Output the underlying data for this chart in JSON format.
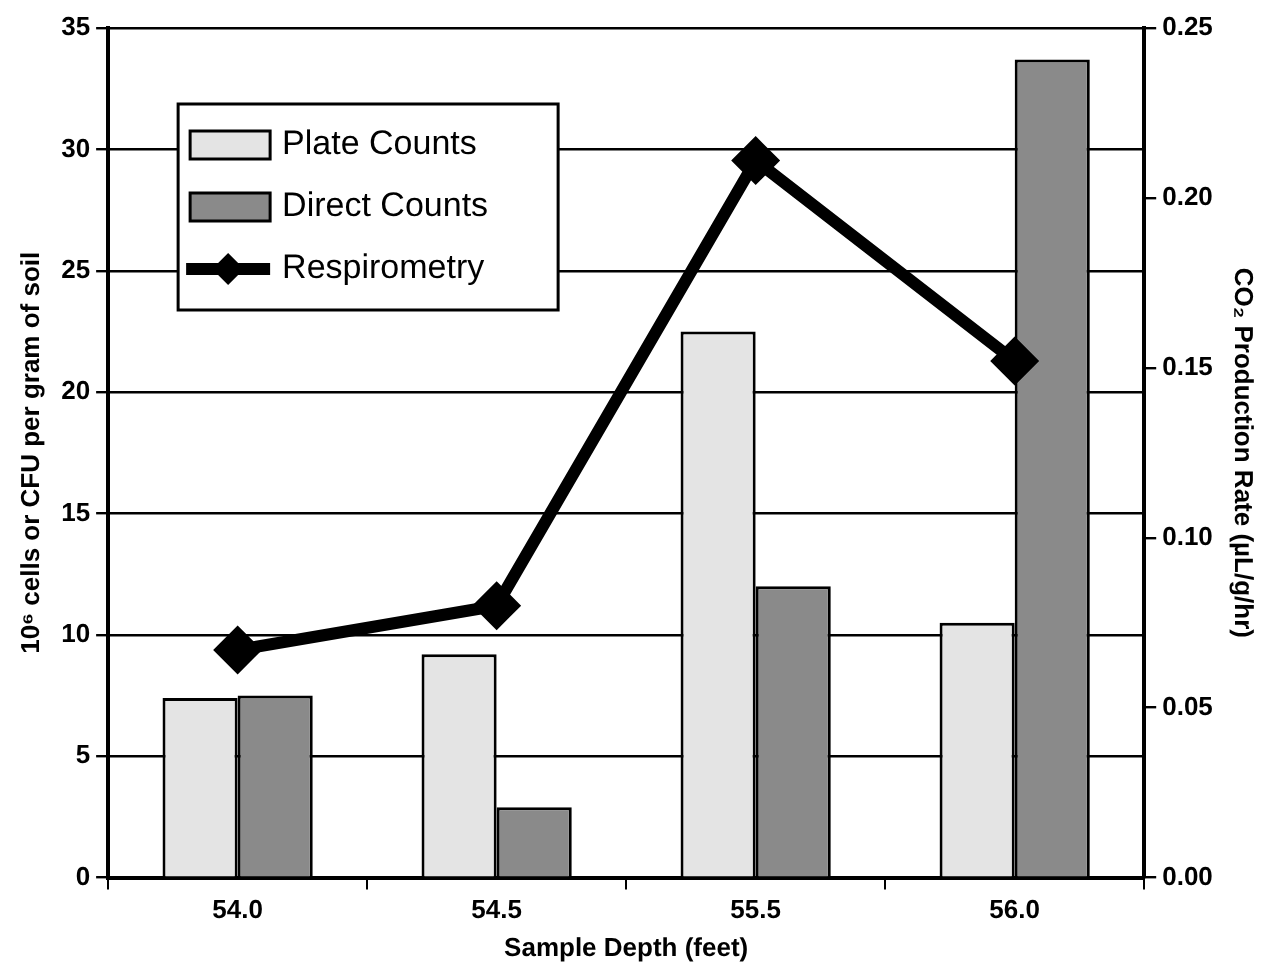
{
  "chart_data": {
    "type": "bar",
    "xlabel": "Sample Depth (feet)",
    "ylabel": "10⁶ cells or CFU per gram of soil",
    "y2label": "CO₂ Production Rate (µL/g/hr)",
    "categories": [
      "54.0",
      "54.5",
      "55.5",
      "56.0"
    ],
    "series": [
      {
        "name": "Plate Counts",
        "color": "#e4e4e4",
        "values": [
          7.4,
          9.2,
          22.5,
          10.5
        ]
      },
      {
        "name": "Direct Counts",
        "color": "#8a8a8a",
        "values": [
          7.5,
          2.9,
          12.0,
          33.7
        ]
      },
      {
        "name": "Respirometry",
        "type": "line",
        "axis": "y2",
        "color": "#000000",
        "values": [
          0.067,
          0.08,
          0.211,
          0.152
        ],
        "marker": "diamond",
        "line_style": "solid"
      }
    ],
    "ylim": [
      0,
      35
    ],
    "yticks": [
      0,
      5,
      10,
      15,
      20,
      25,
      30,
      35
    ],
    "y2lim": [
      0,
      0.25
    ],
    "y2ticks": [
      {
        "value": 0,
        "label": "0.00"
      },
      {
        "value": 0.05,
        "label": "0.05"
      },
      {
        "value": 0.1,
        "label": "0.10"
      },
      {
        "value": 0.15,
        "label": "0.15"
      },
      {
        "value": 0.2,
        "label": "0.20"
      },
      {
        "value": 0.25,
        "label": "0.25"
      }
    ],
    "grid": "y",
    "legend": "top left"
  }
}
